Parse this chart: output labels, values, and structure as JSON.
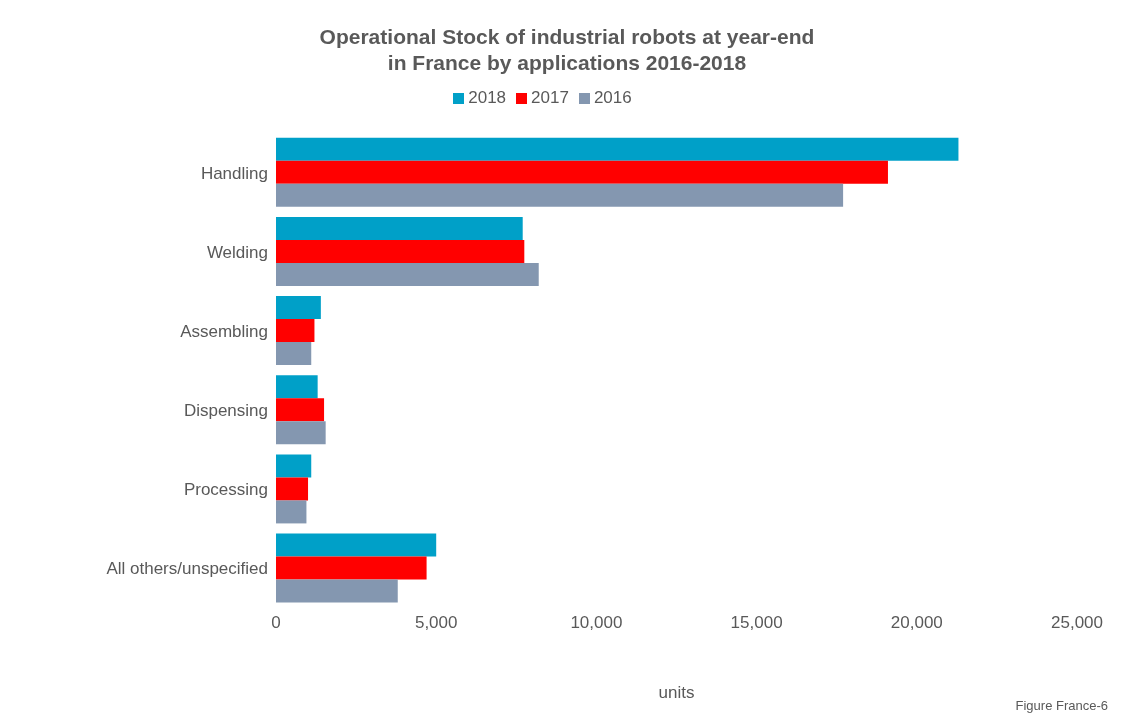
{
  "chart_data": {
    "type": "bar",
    "orientation": "horizontal",
    "title": "Operational Stock of industrial robots at year-end\nin France by applications 2016-2018",
    "xlabel": "units",
    "categories": [
      "Handling",
      "Welding",
      "Assembling",
      "Dispensing",
      "Processing",
      "All others/unspecified"
    ],
    "series": [
      {
        "name": "2018",
        "color": "#00a0c8",
        "values": [
          21300,
          7700,
          1400,
          1300,
          1100,
          5000
        ]
      },
      {
        "name": "2017",
        "color": "#ff0000",
        "values": [
          19100,
          7750,
          1200,
          1500,
          1000,
          4700
        ]
      },
      {
        "name": "2016",
        "color": "#8497b0",
        "values": [
          17700,
          8200,
          1100,
          1550,
          950,
          3800
        ]
      }
    ],
    "xlim": [
      0,
      25000
    ],
    "xticks": [
      0,
      {
        "value": 5000,
        "label": "5,000"
      },
      {
        "value": 10000,
        "label": "10,000"
      },
      {
        "value": 15000,
        "label": "15,000"
      },
      {
        "value": 20000,
        "label": "20,000"
      },
      {
        "value": 25000,
        "label": "25,000"
      }
    ],
    "grid": false,
    "legend": "top",
    "annotations": [
      "Figure France-6"
    ]
  }
}
